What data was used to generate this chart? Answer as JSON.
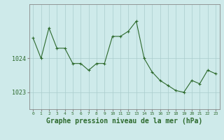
{
  "x": [
    0,
    1,
    2,
    3,
    4,
    5,
    6,
    7,
    8,
    9,
    10,
    11,
    12,
    13,
    14,
    15,
    16,
    17,
    18,
    19,
    20,
    21,
    22,
    23
  ],
  "y": [
    1024.6,
    1024.0,
    1024.9,
    1024.3,
    1024.3,
    1023.85,
    1023.85,
    1023.65,
    1023.85,
    1023.85,
    1024.65,
    1024.65,
    1024.8,
    1025.1,
    1024.0,
    1023.6,
    1023.35,
    1023.2,
    1023.05,
    1023.0,
    1023.35,
    1023.25,
    1023.65,
    1023.55
  ],
  "line_color": "#2d6a2d",
  "marker": "+",
  "marker_size": 3,
  "marker_color": "#2d6a2d",
  "bg_color": "#ceeaea",
  "grid_color": "#aacccc",
  "ylabel_ticks": [
    1023,
    1024
  ],
  "xlabel": "Graphe pression niveau de la mer (hPa)",
  "xlabel_fontsize": 7,
  "tick_label_color": "#2d6a2d",
  "ylim": [
    1022.5,
    1025.6
  ],
  "xlim": [
    -0.5,
    23.5
  ]
}
